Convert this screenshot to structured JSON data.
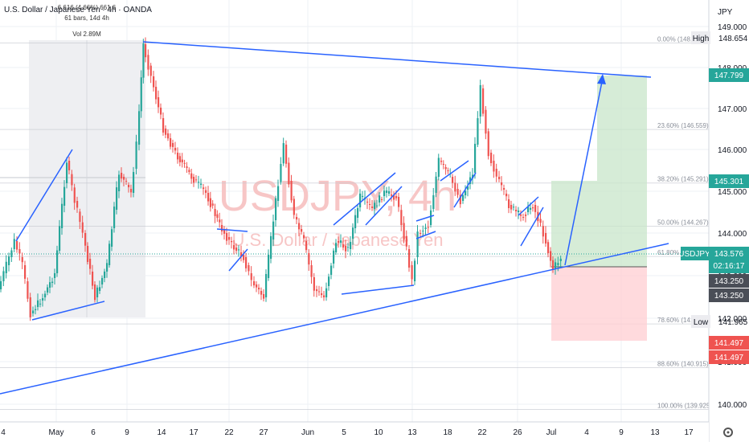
{
  "header": {
    "symbol_line": "U.S. Dollar / Japanese Yen · 4h · OANDA",
    "range_stats": "6.616 (4.66%) 661.6",
    "bars_stats": "61 bars, 14d 4h",
    "vol_stats": "Vol 2.89M"
  },
  "watermark": {
    "ticker": "USDJPY, 4h",
    "name": "U.S. Dollar / Japanese Yen"
  },
  "price_axis": {
    "currency": "JPY",
    "ticks": [
      "149.000",
      "148.000",
      "147.000",
      "146.000",
      "145.000",
      "144.000",
      "143.000",
      "142.000",
      "141.000",
      "140.000"
    ]
  },
  "labels": {
    "high_label": "High",
    "high_value": "148.654",
    "target_value": "147.799",
    "mid_value": "145.301",
    "symbol_tag": "USDJPY",
    "last_price": "143.576",
    "countdown": "02:16:17",
    "entry_1": "143.250",
    "entry_2": "143.250",
    "low_label": "Low",
    "low_value": "141.965",
    "stop_1": "141.497",
    "stop_2": "141.497"
  },
  "fib_levels": [
    {
      "label": "0.00% (148.609)",
      "price": 148.609
    },
    {
      "label": "23.60% (146.559)",
      "price": 146.559
    },
    {
      "label": "38.20% (145.291)",
      "price": 145.291
    },
    {
      "label": "50.00% (144.267)",
      "price": 144.267
    },
    {
      "label": "61.80%",
      "price": 143.55
    },
    {
      "label": "78.60% (141.",
      "price": 141.95
    },
    {
      "label": "88.60% (140.915)",
      "price": 140.915
    },
    {
      "label": "100.00% (139.925)",
      "price": 139.925
    }
  ],
  "time_axis": {
    "ticks": [
      "4",
      "May",
      "6",
      "9",
      "14",
      "17",
      "22",
      "27",
      "Jun",
      "5",
      "10",
      "13",
      "18",
      "22",
      "26",
      "Jul",
      "4",
      "9",
      "13",
      "17"
    ]
  },
  "colors": {
    "up": "#26a69a",
    "down": "#ef5350",
    "trendline": "#2962ff",
    "profit_zone": "#c8e6c9",
    "loss_zone": "#ffcdd2",
    "dark_tag": "#4a4e57"
  }
}
